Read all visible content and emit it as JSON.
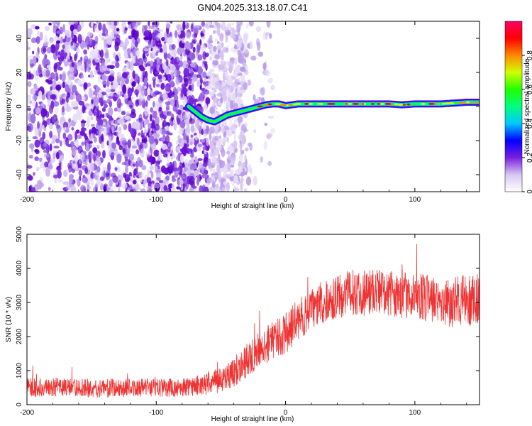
{
  "title": "GN04.2025.313.18.07.C41",
  "chart_data": [
    {
      "type": "heatmap",
      "title": "GN04.2025.313.18.07.C41",
      "xlabel": "Height of straight line (km)",
      "ylabel": "Frequency (Hz)",
      "xlim": [
        -200,
        150
      ],
      "ylim": [
        -50,
        50
      ],
      "xticks": [
        -200,
        -100,
        0,
        100
      ],
      "yticks": [
        -40,
        -20,
        0,
        20,
        40
      ],
      "colorbar": {
        "label": "Normalized spectral amplitude",
        "range": [
          0,
          1
        ],
        "ticks": [
          0,
          0.2,
          0.4,
          0.6,
          0.8
        ],
        "colormap": [
          "#ffffff",
          "#d8c8f0",
          "#7a1fe0",
          "#0000ff",
          "#00c8ff",
          "#00ff80",
          "#20ff00",
          "#d0ff00",
          "#ff8800",
          "#ff0000",
          "#ff0066"
        ]
      },
      "noise_region_km": [
        -200,
        -30
      ],
      "signal_trace": {
        "x": [
          -75,
          -70,
          -65,
          -60,
          -55,
          -50,
          -45,
          -40,
          -35,
          -30,
          -25,
          -20,
          -15,
          -10,
          -5,
          0,
          10,
          20,
          40,
          60,
          80,
          90,
          100,
          120,
          140,
          150
        ],
        "y": [
          0,
          -3,
          -6,
          -8,
          -9,
          -7,
          -5,
          -4,
          -3,
          -2,
          -1,
          0,
          1,
          1.5,
          1.5,
          0.5,
          1.5,
          1.5,
          1.5,
          1.5,
          1.5,
          1,
          1.5,
          1.5,
          2.5,
          2.5
        ]
      },
      "grid": false
    },
    {
      "type": "line",
      "xlabel": "Height of straight line (km)",
      "ylabel": "SNR (10 * v/v)",
      "xlim": [
        -200,
        150
      ],
      "ylim": [
        0,
        5000
      ],
      "xticks": [
        -200,
        -100,
        0,
        100
      ],
      "yticks": [
        0,
        1000,
        2000,
        3000,
        4000,
        5000
      ],
      "series": [
        {
          "color": "#ee3333",
          "x": [
            -200,
            -180,
            -160,
            -140,
            -120,
            -100,
            -80,
            -70,
            -60,
            -50,
            -40,
            -30,
            -20,
            -10,
            0,
            10,
            20,
            30,
            40,
            50,
            60,
            70,
            80,
            90,
            100,
            110,
            120,
            130,
            140,
            150
          ],
          "y": [
            500,
            520,
            500,
            480,
            500,
            500,
            500,
            550,
            600,
            750,
            950,
            1300,
            1600,
            1900,
            2100,
            2500,
            2800,
            3000,
            3150,
            3300,
            3300,
            3350,
            3250,
            3200,
            3200,
            3100,
            3000,
            3000,
            3050,
            3100
          ],
          "spread": [
            500,
            500,
            500,
            500,
            500,
            500,
            500,
            550,
            600,
            700,
            800,
            900,
            1000,
            1000,
            1100,
            1100,
            1100,
            1100,
            1150,
            1200,
            1300,
            1250,
            1200,
            1200,
            1250,
            1300,
            1300,
            1350,
            1400,
            1400
          ]
        }
      ],
      "grid": false
    }
  ]
}
